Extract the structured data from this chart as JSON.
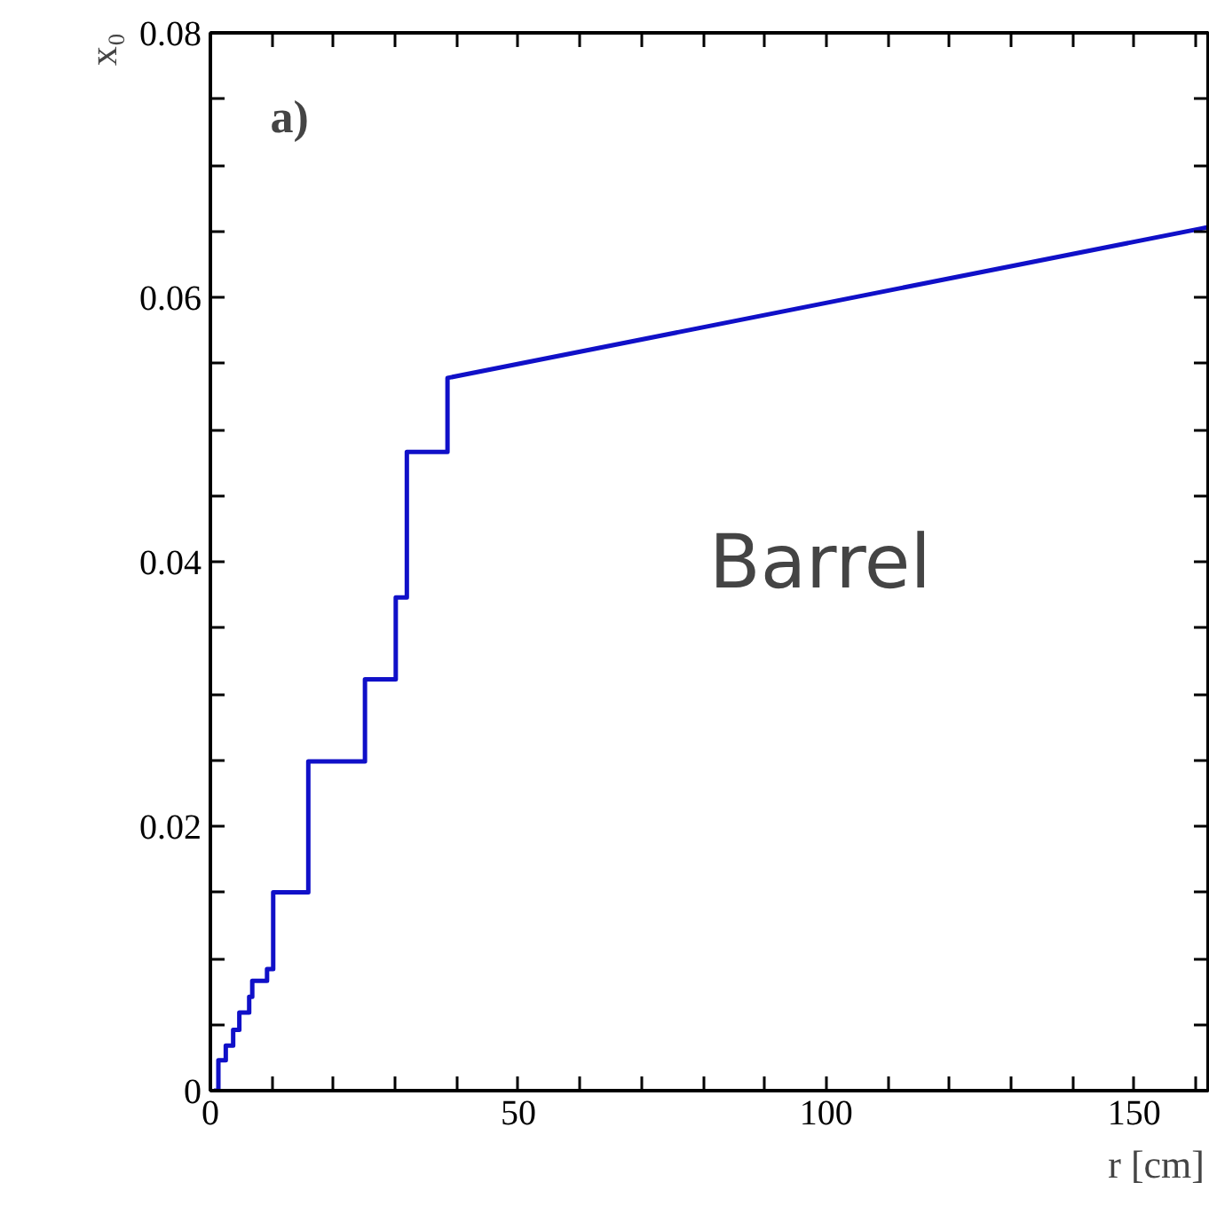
{
  "chart_data": {
    "type": "line",
    "xlabel": "r [cm]",
    "ylabel": "x₀",
    "annotations": [
      "a)",
      "Barrel"
    ],
    "x": [
      0.57,
      1.3,
      1.3,
      2.5,
      2.5,
      3.7,
      3.7,
      4.7,
      4.7,
      6.3,
      6.3,
      6.8,
      6.8,
      9.2,
      9.2,
      10.2,
      10.2,
      15.9,
      15.9,
      25.1,
      25.1,
      30.1,
      30.1,
      31.9,
      31.9,
      38.5,
      38.5,
      162
    ],
    "series": [
      {
        "color": "#1010c8",
        "values": [
          0,
          0,
          0.0023,
          0.0023,
          0.0034,
          0.0034,
          0.0046,
          0.0046,
          0.0059,
          0.0059,
          0.0071,
          0.0071,
          0.0083,
          0.0083,
          0.0092,
          0.0092,
          0.015,
          0.015,
          0.0249,
          0.0249,
          0.0311,
          0.0311,
          0.0373,
          0.0373,
          0.0483,
          0.0483,
          0.0539,
          0.0653
        ]
      }
    ],
    "xlim": [
      0,
      162
    ],
    "ylim": [
      0,
      0.08
    ],
    "xticks": [
      0,
      {
        "value": 10,
        "label": null
      },
      {
        "value": 20,
        "label": null
      },
      {
        "value": 30,
        "label": null
      },
      {
        "value": 40,
        "label": null
      },
      50,
      {
        "value": 60,
        "label": null
      },
      {
        "value": 70,
        "label": null
      },
      {
        "value": 80,
        "label": null
      },
      {
        "value": 90,
        "label": null
      },
      100,
      {
        "value": 110,
        "label": null
      },
      {
        "value": 120,
        "label": null
      },
      {
        "value": 130,
        "label": null
      },
      {
        "value": 140,
        "label": null
      },
      150,
      {
        "value": 160,
        "label": null
      }
    ],
    "yticks": [
      0,
      {
        "value": 0.005,
        "label": null
      },
      {
        "value": 0.01,
        "label": null
      },
      {
        "value": 0.015,
        "label": null
      },
      {
        "value": 0.02,
        "label": "0.02"
      },
      {
        "value": 0.025,
        "label": null
      },
      {
        "value": 0.03,
        "label": null
      },
      {
        "value": 0.035,
        "label": null
      },
      {
        "value": 0.04,
        "label": "0.04"
      },
      {
        "value": 0.045,
        "label": null
      },
      {
        "value": 0.05,
        "label": null
      },
      {
        "value": 0.055,
        "label": null
      },
      {
        "value": 0.06,
        "label": "0.06"
      },
      {
        "value": 0.065,
        "label": null
      },
      {
        "value": 0.07,
        "label": null
      },
      {
        "value": 0.075,
        "label": null
      },
      {
        "value": 0.08,
        "label": "0.08"
      }
    ],
    "grid": false,
    "marker": "none",
    "line_style": "solid"
  }
}
